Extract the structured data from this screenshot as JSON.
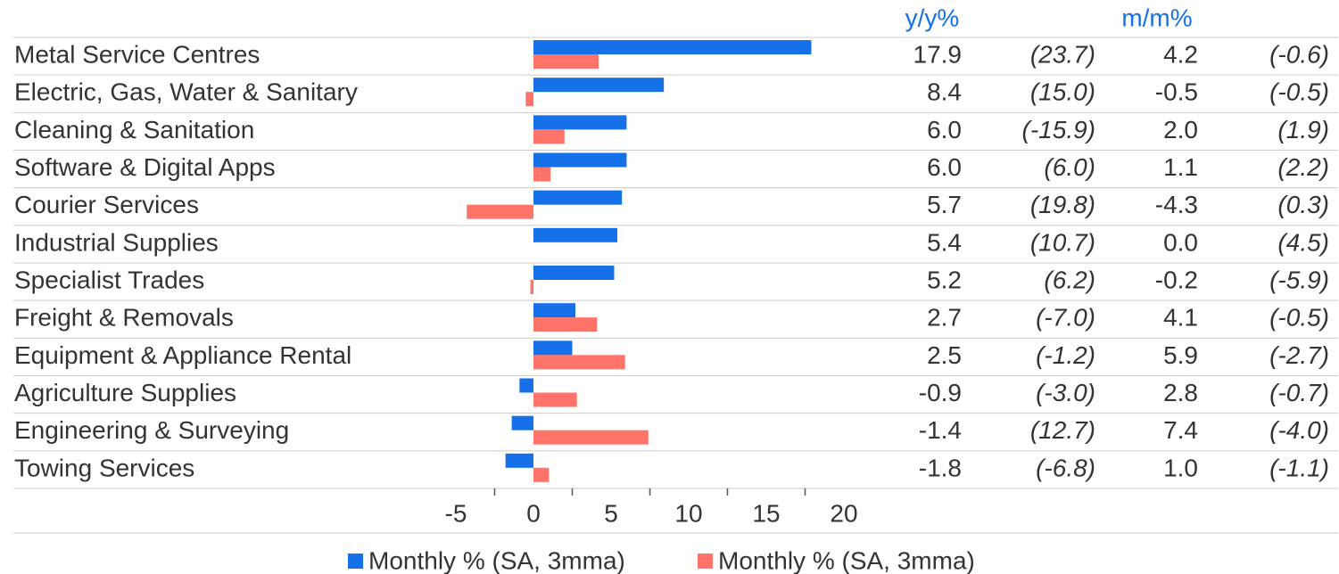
{
  "chart_data": {
    "type": "hbar",
    "categories": [
      "Metal Service Centres",
      "Electric, Gas, Water & Sanitary",
      "Cleaning & Sanitation",
      "Software & Digital Apps",
      "Courier Services",
      "Industrial Supplies",
      "Specialist Trades",
      "Freight & Removals",
      "Equipment & Appliance Rental",
      "Agriculture Supplies",
      "Engineering & Surveying",
      "Towing Services"
    ],
    "series": [
      {
        "name": "Monthly % (SA, 3mma)",
        "header": "y/y%",
        "color": "#1670e8",
        "values": [
          17.9,
          8.4,
          6.0,
          6.0,
          5.7,
          5.4,
          5.2,
          2.7,
          2.5,
          -0.9,
          -1.4,
          -1.8
        ],
        "value_labels": [
          "17.9",
          "8.4",
          "6.0",
          "6.0",
          "5.7",
          "5.4",
          "5.2",
          "2.7",
          "2.5",
          "-0.9",
          "-1.4",
          "-1.8"
        ],
        "paren_labels": [
          "(23.7)",
          "(15.0)",
          "(-15.9)",
          "(6.0)",
          "(19.8)",
          "(10.7)",
          "(6.2)",
          "(-7.0)",
          "(-1.2)",
          "(-3.0)",
          "(12.7)",
          "(-6.8)"
        ]
      },
      {
        "name": "Monthly % (SA, 3mma)",
        "header": "m/m%",
        "color": "#ff7369",
        "values": [
          4.2,
          -0.5,
          2.0,
          1.1,
          -4.3,
          0.0,
          -0.2,
          4.1,
          5.9,
          2.8,
          7.4,
          1.0
        ],
        "value_labels": [
          "4.2",
          "-0.5",
          "2.0",
          "1.1",
          "-4.3",
          "0.0",
          "-0.2",
          "4.1",
          "5.9",
          "2.8",
          "7.4",
          "1.0"
        ],
        "paren_labels": [
          "(-0.6)",
          "(-0.5)",
          "(1.9)",
          "(2.2)",
          "(0.3)",
          "(4.5)",
          "(-5.9)",
          "(-0.5)",
          "(-2.7)",
          "(-0.7)",
          "(-4.0)",
          "(-1.1)"
        ]
      }
    ],
    "xlim": [
      -5,
      20
    ],
    "xticks": [
      -5,
      0,
      5,
      10,
      15,
      20
    ],
    "minor_xticks": [
      -2.5,
      2.5,
      7.5,
      12.5,
      17.5
    ]
  }
}
